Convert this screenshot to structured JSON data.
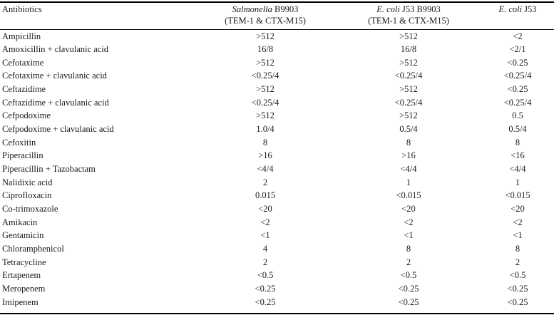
{
  "table": {
    "header": {
      "antibiotics": "Antibiotics",
      "col1": {
        "italic": "Salmonella",
        "rest": " B9903",
        "line2": "(TEM-1 & CTX-M15)"
      },
      "col2": {
        "italic": "E. coli",
        "rest": " J53 B9903",
        "line2": "(TEM-1 & CTX-M15)"
      },
      "col3": {
        "italic": "E. coli",
        "rest": " J53",
        "line2": ""
      }
    },
    "rows": [
      {
        "name": "Ampicillin",
        "v1": ">512",
        "v2": ">512",
        "v3": "<2"
      },
      {
        "name": "Amoxicillin + clavulanic acid",
        "v1": "16/8",
        "v2": "16/8",
        "v3": "<2/1"
      },
      {
        "name": "Cefotaxime",
        "v1": ">512",
        "v2": ">512",
        "v3": "<0.25"
      },
      {
        "name": "Cefotaxime + clavulanic acid",
        "v1": "<0.25/4",
        "v2": "<0.25/4",
        "v3": "<0.25/4"
      },
      {
        "name": "Ceftazidime",
        "v1": ">512",
        "v2": ">512",
        "v3": "<0.25"
      },
      {
        "name": "Ceftazidime + clavulanic acid",
        "v1": "<0.25/4",
        "v2": "<0.25/4",
        "v3": "<0.25/4"
      },
      {
        "name": "Cefpodoxime",
        "v1": ">512",
        "v2": ">512",
        "v3": "0.5"
      },
      {
        "name": "Cefpodoxime + clavulanic acid",
        "v1": "1.0/4",
        "v2": "0.5/4",
        "v3": "0.5/4"
      },
      {
        "name": "Cefoxitin",
        "v1": "8",
        "v2": "8",
        "v3": "8"
      },
      {
        "name": "Piperacillin",
        "v1": ">16",
        "v2": ">16",
        "v3": "<16"
      },
      {
        "name": "Piperacillin + Tazobactam",
        "v1": "<4/4",
        "v2": "<4/4",
        "v3": "<4/4"
      },
      {
        "name": "Nalidixic acid",
        "v1": "2",
        "v2": "1",
        "v3": "1"
      },
      {
        "name": "Ciprofloxacin",
        "v1": "0.015",
        "v2": "<0.015",
        "v3": "<0.015"
      },
      {
        "name": "Co-trimoxazole",
        "v1": "<20",
        "v2": "<20",
        "v3": "<20"
      },
      {
        "name": "Amikacin",
        "v1": "<2",
        "v2": "<2",
        "v3": "<2"
      },
      {
        "name": "Gentamicin",
        "v1": "<1",
        "v2": "<1",
        "v3": "<1"
      },
      {
        "name": "Chloramphenicol",
        "v1": "4",
        "v2": "8",
        "v3": "8"
      },
      {
        "name": "Tetracycline",
        "v1": "2",
        "v2": "2",
        "v3": "2"
      },
      {
        "name": "Ertapenem",
        "v1": "<0.5",
        "v2": "<0.5",
        "v3": "<0.5"
      },
      {
        "name": "Meropenem",
        "v1": "<0.25",
        "v2": "<0.25",
        "v3": "<0.25"
      },
      {
        "name": "Imipenem",
        "v1": "<0.25",
        "v2": "<0.25",
        "v3": "<0.25"
      }
    ]
  }
}
